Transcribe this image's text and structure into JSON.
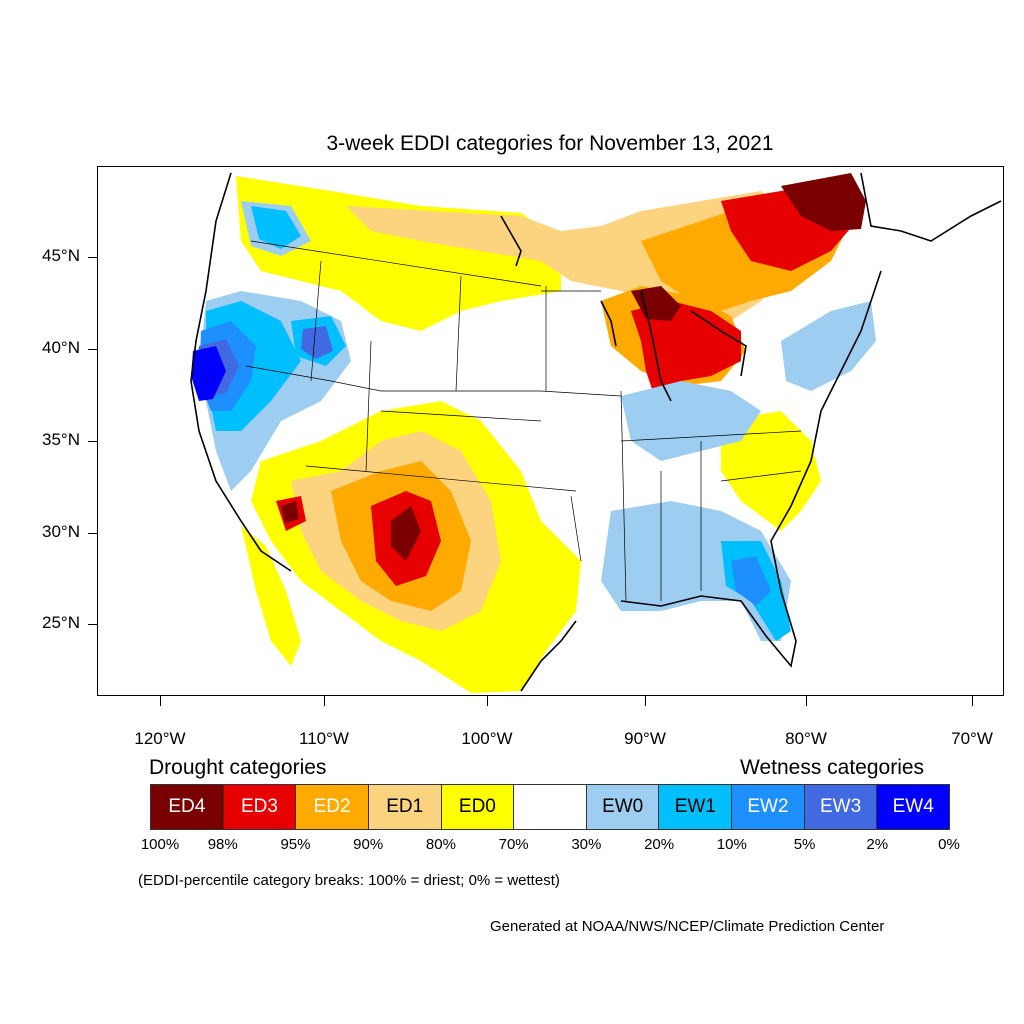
{
  "title": "3-week EDDI categories for November 13, 2021",
  "axes": {
    "lon_labels": [
      "120°W",
      "110°W",
      "100°W",
      "90°W",
      "80°W",
      "70°W"
    ],
    "lat_labels": [
      "45°N",
      "40°N",
      "35°N",
      "30°N",
      "25°N"
    ]
  },
  "legend": {
    "drought_title": "Drought categories",
    "wetness_title": "Wetness categories",
    "categories": [
      {
        "label": "ED4",
        "color": "#7a0000",
        "text_color": "#ffffff"
      },
      {
        "label": "ED3",
        "color": "#e60000",
        "text_color": "#ffffff"
      },
      {
        "label": "ED2",
        "color": "#ffaa00",
        "text_color": "#ffffff"
      },
      {
        "label": "ED1",
        "color": "#fcd37f",
        "text_color": "#000000"
      },
      {
        "label": "ED0",
        "color": "#ffff00",
        "text_color": "#000000"
      },
      {
        "label": "",
        "color": "#ffffff",
        "text_color": "#000000"
      },
      {
        "label": "EW0",
        "color": "#9dcdf0",
        "text_color": "#000000"
      },
      {
        "label": "EW1",
        "color": "#00bfff",
        "text_color": "#000000"
      },
      {
        "label": "EW2",
        "color": "#1e8fff",
        "text_color": "#ffffff"
      },
      {
        "label": "EW3",
        "color": "#4169e1",
        "text_color": "#ffffff"
      },
      {
        "label": "EW4",
        "color": "#0000ff",
        "text_color": "#ffffff"
      }
    ],
    "breaks": [
      "100%",
      "98%",
      "95%",
      "90%",
      "80%",
      "70%",
      "30%",
      "20%",
      "10%",
      "5%",
      "2%",
      "0%"
    ]
  },
  "note": "(EDDI-percentile category breaks: 100% = driest; 0% = wettest)",
  "credit": "Generated at NOAA/NWS/NCEP/Climate Prediction Center"
}
